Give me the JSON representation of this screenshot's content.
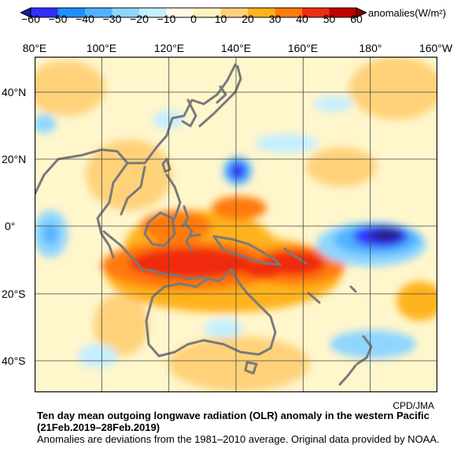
{
  "colorbar": {
    "units": "anomalies(W/m²)",
    "ticks": [
      "−60",
      "−50",
      "−40",
      "−30",
      "−20",
      "−10",
      "0",
      "10",
      "20",
      "30",
      "40",
      "50",
      "60"
    ],
    "colors": [
      "#3030ff",
      "#1e90ff",
      "#4fb3ff",
      "#8fd6ff",
      "#c4efff",
      "#fffbe6",
      "#fff3c0",
      "#ffd27a",
      "#ffb21a",
      "#ff7a10",
      "#f02c10",
      "#c00000"
    ]
  },
  "map": {
    "lon_labels": [
      "80°E",
      "100°E",
      "120°E",
      "140°E",
      "160°E",
      "180°",
      "160°W"
    ],
    "lat_labels": [
      "40°N",
      "20°N",
      "0°",
      "20°S",
      "40°S"
    ],
    "land_color": "#7a7a7a"
  },
  "credit": "CPD/JMA",
  "caption": {
    "title": "Ten day mean outgoing longwave radiation (OLR) anomaly in the western Pacific",
    "period": "(21Feb.2019–28Feb.2019)",
    "note": "Anomalies are deviations from the 1981–2010 average. Original data provided by NOAA."
  }
}
